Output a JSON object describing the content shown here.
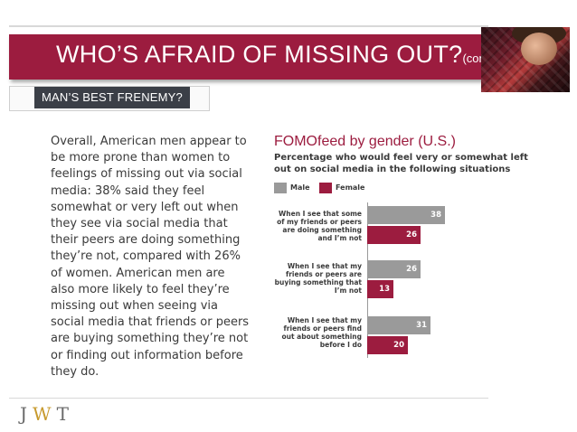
{
  "slide": {
    "title_main": "WHO’S AFRAID OF MISSING OUT?",
    "title_suffix": "(cont’d.)",
    "subtitle": "MAN’S BEST FRENEMY?",
    "body": "Overall, American men appear to be more prone than women to feelings of missing out via social media: 38% said they feel somewhat or very left out when they see via social media that their peers are doing something they’re not, compared with 26% of women. American men are also more likely to feel they’re missing out when seeing via social media that friends or peers are buying something they’re not or finding out information before they do.",
    "logo": {
      "j": "J",
      "w": "W",
      "t": "T"
    }
  },
  "colors": {
    "brand": "#9c1c3f",
    "male": "#9a9a9a",
    "female": "#9c1c3f",
    "banner_dark": "#3b3f47",
    "logo_w": "#c79a2e"
  },
  "chart_data": {
    "type": "bar",
    "orientation": "horizontal",
    "title": "FOMOfeed by gender (U.S.)",
    "subtitle": "Percentage who would feel very or somewhat left out on social media in the following situations",
    "categories": [
      "When I see that some of my friends or peers are doing something and I’m not",
      "When I see that my friends or peers are buying something that I’m not",
      "When I see that my friends or peers find out about something before I do"
    ],
    "series": [
      {
        "name": "Male",
        "color": "#9a9a9a",
        "values": [
          38,
          26,
          31
        ]
      },
      {
        "name": "Female",
        "color": "#9c1c3f",
        "values": [
          26,
          13,
          20
        ]
      }
    ],
    "legend": "top-left",
    "data_labels": true,
    "xlim": [
      0,
      40
    ]
  }
}
